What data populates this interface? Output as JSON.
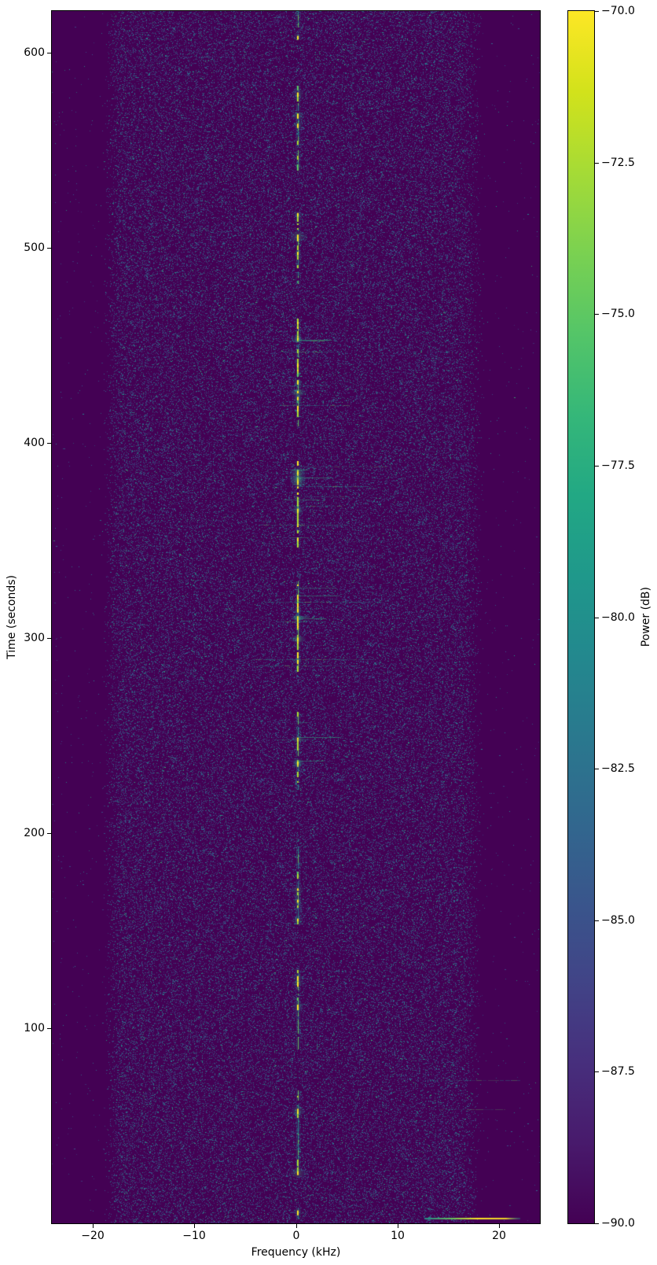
{
  "figure": {
    "background": "#ffffff",
    "axis_color": "#000000"
  },
  "chart_data": {
    "type": "heatmap",
    "subtype": "spectrogram-waterfall",
    "title": "",
    "xlabel": "Frequency (kHz)",
    "ylabel": "Time (seconds)",
    "colorbar_label": "Power (dB)",
    "colormap": "viridis",
    "grid": false,
    "xlim": [
      -24,
      24
    ],
    "ylim": [
      0,
      621.5
    ],
    "clim": [
      -90,
      -70
    ],
    "xticks": [
      {
        "v": -20,
        "label": "−20"
      },
      {
        "v": -10,
        "label": "−10"
      },
      {
        "v": 0,
        "label": "0"
      },
      {
        "v": 10,
        "label": "10"
      },
      {
        "v": 20,
        "label": "20"
      }
    ],
    "yticks": [
      {
        "v": 100,
        "label": "100"
      },
      {
        "v": 200,
        "label": "200"
      },
      {
        "v": 300,
        "label": "300"
      },
      {
        "v": 400,
        "label": "400"
      },
      {
        "v": 500,
        "label": "500"
      },
      {
        "v": 600,
        "label": "600"
      }
    ],
    "colorbar_ticks": [
      {
        "v": -70.0,
        "label": "−70.0"
      },
      {
        "v": -72.5,
        "label": "−72.5"
      },
      {
        "v": -75.0,
        "label": "−75.0"
      },
      {
        "v": -77.5,
        "label": "−77.5"
      },
      {
        "v": -80.0,
        "label": "−80.0"
      },
      {
        "v": -82.5,
        "label": "−82.5"
      },
      {
        "v": -85.0,
        "label": "−85.0"
      },
      {
        "v": -87.5,
        "label": "−87.5"
      },
      {
        "v": -90.0,
        "label": "−90.0"
      }
    ],
    "noise_floor_db": -90,
    "noise_band": {
      "rise_center_khz": -19.2,
      "rise_width_khz": 2.2,
      "fall_center_khz": 18.6,
      "fall_width_khz": 2.6,
      "peak_density": 0.17
    },
    "center_frequency_khz": 0.2,
    "signal_segments": [
      {
        "t_start": 607,
        "t_end": 621.5,
        "strength": 0.55
      },
      {
        "t_start": 540,
        "t_end": 583,
        "strength": 0.75
      },
      {
        "t_start": 482,
        "t_end": 518,
        "strength": 0.75
      },
      {
        "t_start": 411,
        "t_end": 464,
        "strength": 1.0
      },
      {
        "t_start": 349,
        "t_end": 391,
        "strength": 1.0
      },
      {
        "t_start": 282,
        "t_end": 329,
        "strength": 1.0
      },
      {
        "t_start": 224,
        "t_end": 262,
        "strength": 0.85
      },
      {
        "t_start": 154,
        "t_end": 197,
        "strength": 0.65
      },
      {
        "t_start": 91,
        "t_end": 132,
        "strength": 0.7
      },
      {
        "t_start": 25,
        "t_end": 68,
        "strength": 0.7
      },
      {
        "t_start": 4,
        "t_end": 8,
        "strength": 0.4
      }
    ],
    "streaks": [
      {
        "time_s": 452.5,
        "f_start_khz": -0.7,
        "f_end_khz": 3.4,
        "intensity": 0.5,
        "style": "cyan"
      },
      {
        "time_s": 446.9,
        "f_start_khz": -1.3,
        "f_end_khz": 4.1,
        "intensity": 0.5,
        "style": "cyan"
      },
      {
        "time_s": 429.6,
        "f_start_khz": -2.8,
        "f_end_khz": 3.4,
        "intensity": 0.45,
        "style": "cyan"
      },
      {
        "time_s": 419.5,
        "f_start_khz": -1.6,
        "f_end_khz": 5.3,
        "intensity": 0.5,
        "style": "cyan"
      },
      {
        "time_s": 388.0,
        "f_start_khz": 0.0,
        "f_end_khz": 9.0,
        "intensity": 0.3,
        "style": "cyan"
      },
      {
        "time_s": 377.9,
        "f_start_khz": 0.1,
        "f_end_khz": 7.2,
        "intensity": 0.55,
        "style": "cyan"
      },
      {
        "time_s": 372.7,
        "f_start_khz": -0.1,
        "f_end_khz": 5.3,
        "intensity": 0.5,
        "style": "cyan"
      },
      {
        "time_s": 367.8,
        "f_start_khz": -0.3,
        "f_end_khz": 4.5,
        "intensity": 0.5,
        "style": "cyan"
      },
      {
        "time_s": 358.2,
        "f_start_khz": -3.6,
        "f_end_khz": 5.3,
        "intensity": 0.45,
        "style": "cyan"
      },
      {
        "time_s": 318.6,
        "f_start_khz": -2.8,
        "f_end_khz": 8.5,
        "intensity": 0.55,
        "style": "cyan"
      },
      {
        "time_s": 308.5,
        "f_start_khz": -2.0,
        "f_end_khz": 3.0,
        "intensity": 0.45,
        "style": "cyan"
      },
      {
        "time_s": 289.2,
        "f_start_khz": -4.3,
        "f_end_khz": 7.2,
        "intensity": 0.5,
        "style": "cyan"
      },
      {
        "time_s": 286.0,
        "f_start_khz": -3.7,
        "f_end_khz": 6.1,
        "intensity": 0.45,
        "style": "cyan"
      },
      {
        "time_s": 248.1,
        "f_start_khz": -2.0,
        "f_end_khz": 1.8,
        "intensity": 0.4,
        "style": "cyan"
      },
      {
        "time_s": 73.4,
        "f_start_khz": 12.9,
        "f_end_khz": 22.1,
        "intensity": 0.35,
        "style": "cyan"
      },
      {
        "time_s": 58.5,
        "f_start_khz": 14.2,
        "f_end_khz": 20.6,
        "intensity": 0.3,
        "style": "cyan"
      },
      {
        "time_s": 2.4,
        "f_start_khz": 12.6,
        "f_end_khz": 22.1,
        "intensity": 1.0,
        "style": "bright"
      }
    ],
    "faint_traces": [
      {
        "points": [
          [
            5.6,
            621
          ],
          [
            5.5,
            560
          ],
          [
            5.2,
            500
          ],
          [
            4.9,
            455
          ],
          [
            4.8,
            430
          ]
        ],
        "alpha": 0.16
      },
      {
        "points": [
          [
            -17.5,
            18
          ],
          [
            -13.5,
            85
          ]
        ],
        "alpha": 0.14
      },
      {
        "points": [
          [
            -1.4,
            369
          ],
          [
            -4.2,
            320
          ],
          [
            -5.9,
            264
          ]
        ],
        "alpha": 0.12
      },
      {
        "points": [
          [
            -13.0,
            540
          ],
          [
            -14.5,
            605
          ]
        ],
        "alpha": 0.1
      }
    ],
    "viridis_stops": [
      "#440154",
      "#481a6c",
      "#472f7d",
      "#414487",
      "#39568c",
      "#31688e",
      "#2a788e",
      "#23888e",
      "#1f988b",
      "#22a884",
      "#35b779",
      "#54c568",
      "#7ad151",
      "#a5db36",
      "#d2e21b",
      "#fde725"
    ],
    "noise_palette": [
      "#3b528b",
      "#31688e",
      "#26828e",
      "#1f9e89",
      "#35b779"
    ],
    "signal_palette": [
      "#fde725",
      "#addc30",
      "#5ec962",
      "#21918c",
      "#2a788e"
    ]
  }
}
